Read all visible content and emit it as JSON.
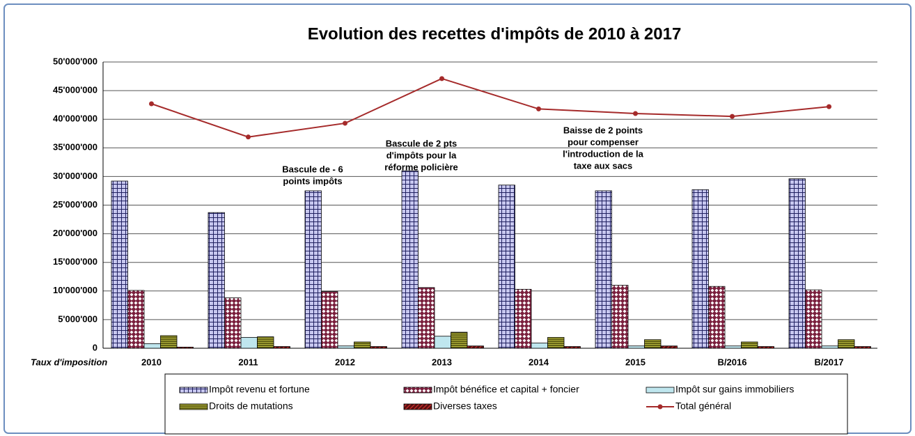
{
  "chart_data": {
    "type": "bar",
    "title": "Evolution des recettes d'impôts de 2010 à 2017",
    "x_label": "Taux d'imposition",
    "categories": [
      "2010",
      "2011",
      "2012",
      "2013",
      "2014",
      "2015",
      "B/2016",
      "B/2017"
    ],
    "series": [
      {
        "name": "Impôt revenu et fortune",
        "color": "#c8c8f0",
        "values": [
          29200000,
          23700000,
          27500000,
          31000000,
          28500000,
          27500000,
          27700000,
          29600000
        ]
      },
      {
        "name": "Impôt bénéfice et capital + foncier",
        "color": "#7a1f3d",
        "values": [
          10100000,
          8800000,
          9900000,
          10600000,
          10300000,
          11000000,
          10800000,
          10200000
        ]
      },
      {
        "name": "Impôt sur gains immobiliers",
        "color": "#bfe6ee",
        "values": [
          800000,
          1900000,
          400000,
          2100000,
          900000,
          400000,
          400000,
          400000
        ]
      },
      {
        "name": "Droits de mutations",
        "color": "#b4b43c",
        "values": [
          2200000,
          2000000,
          1100000,
          2800000,
          1900000,
          1500000,
          1100000,
          1500000
        ]
      },
      {
        "name": "Diverses taxes",
        "color": "#5a1010",
        "values": [
          200000,
          300000,
          300000,
          400000,
          300000,
          400000,
          300000,
          300000
        ]
      },
      {
        "name": "Total général",
        "color": "#a52a2a",
        "type": "line",
        "values": [
          42700000,
          36900000,
          39300000,
          47100000,
          41800000,
          41000000,
          40500000,
          42200000
        ]
      }
    ],
    "ylim": [
      0,
      50000000
    ],
    "yticks": [
      0,
      {
        "value": 5000000,
        "label": "5'000'000"
      },
      {
        "value": 10000000,
        "label": "10'000'000"
      },
      {
        "value": 15000000,
        "label": "15'000'000"
      },
      {
        "value": 20000000,
        "label": "20'000'000"
      },
      {
        "value": 25000000,
        "label": "25'000'000"
      },
      {
        "value": 30000000,
        "label": "30'000'000"
      },
      {
        "value": 35000000,
        "label": "35'000'000"
      },
      {
        "value": 40000000,
        "label": "40'000'000"
      },
      {
        "value": 45000000,
        "label": "45'000'000"
      },
      {
        "value": 50000000,
        "label": "50'000'000"
      }
    ],
    "grid": true,
    "legend": "bottom",
    "annotations": [
      {
        "lines": [
          "Bascule de - 6",
          "points impôts"
        ]
      },
      {
        "lines": [
          "Bascule de 2 pts",
          "d'impôts pour la",
          "réforme policière"
        ]
      },
      {
        "lines": [
          "Baisse de 2 points",
          "pour compenser",
          "l'introduction de la",
          "taxe aux sacs"
        ]
      }
    ]
  }
}
